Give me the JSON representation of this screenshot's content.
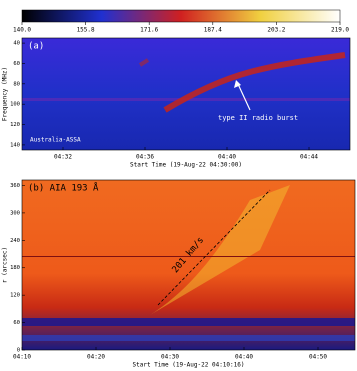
{
  "colorbar": {
    "ticks": [
      {
        "value": 140,
        "label": "140.0"
      },
      {
        "value": 155.8,
        "label": "155.8"
      },
      {
        "value": 171.6,
        "label": "171.6"
      },
      {
        "value": 187.4,
        "label": "187.4"
      },
      {
        "value": 203.2,
        "label": "203.2"
      },
      {
        "value": 219,
        "label": "219.0"
      }
    ],
    "lim": [
      140,
      219
    ]
  },
  "chart_data": [
    {
      "type": "heatmap",
      "panel_label": "(a)",
      "station": "Australia-ASSA",
      "annotation": "type II radio burst",
      "xlabel": "Start Time (19-Aug-22 04:30:00)",
      "ylabel": "Frequency (MHz)",
      "xlim": [
        "04:30",
        "04:46"
      ],
      "xticks": [
        "04:32",
        "04:36",
        "04:40",
        "04:44"
      ],
      "ylim": [
        145,
        35
      ],
      "yticks": [
        40,
        60,
        80,
        100,
        120,
        140
      ]
    },
    {
      "type": "heatmap",
      "panel_label": "(b) AIA 193 Å",
      "annotation": "201 km/s",
      "xlabel": "Start Time (19-Aug-22 04:10:16)",
      "ylabel": "r (arcsec)",
      "xlim": [
        "04:10",
        "04:55"
      ],
      "xticks": [
        "04:10",
        "04:20",
        "04:30",
        "04:40",
        "04:50"
      ],
      "ylim": [
        0,
        372
      ],
      "yticks": [
        0,
        60,
        120,
        180,
        240,
        300,
        360
      ]
    }
  ]
}
